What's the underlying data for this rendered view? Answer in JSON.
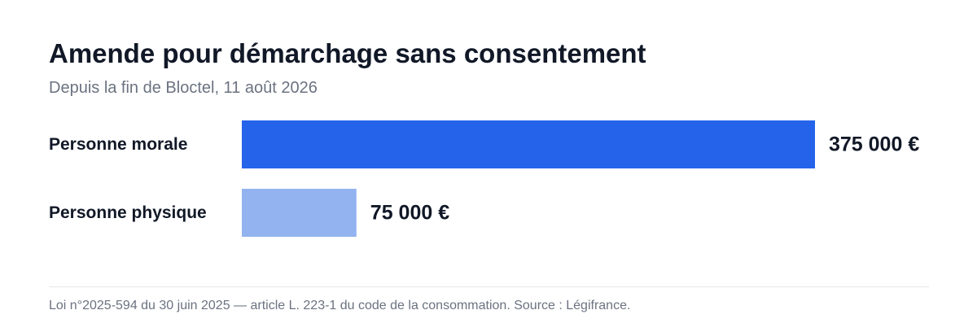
{
  "header": {
    "title": "Amende pour démarchage sans consentement",
    "subtitle": "Depuis la fin de Bloctel, 11 août 2026"
  },
  "footer": {
    "source": "Loi n°2025-594 du 30 juin 2025 — article L. 223-1 du code de la consommation. Source : Légifrance."
  },
  "chart_data": {
    "type": "bar",
    "orientation": "horizontal",
    "title": "Amende pour démarchage sans consentement",
    "subtitle": "Depuis la fin de Bloctel, 11 août 2026",
    "categories": [
      "Personne morale",
      "Personne physique"
    ],
    "values": [
      375000,
      75000
    ],
    "value_labels": [
      "375 000 €",
      "75 000 €"
    ],
    "colors": [
      "#2563eb",
      "#93b3f0"
    ],
    "xlim": [
      0,
      375000
    ],
    "grid": false,
    "legend": "none"
  }
}
